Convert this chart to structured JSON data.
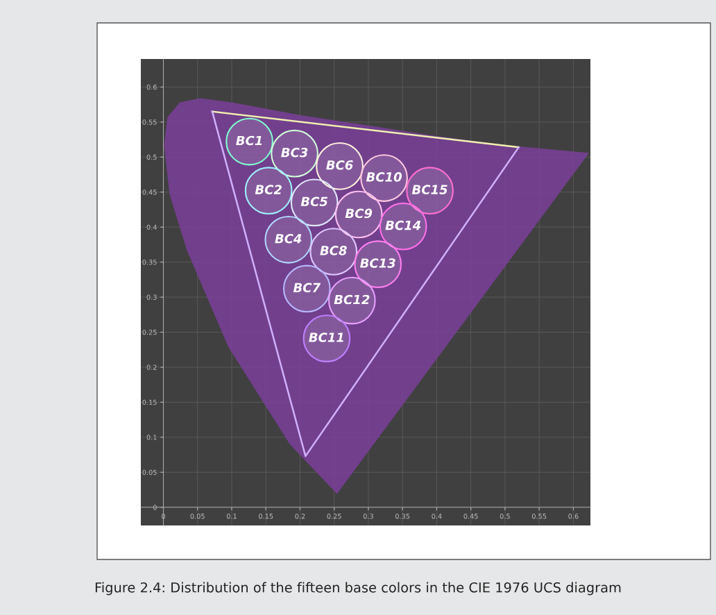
{
  "chart_data": {
    "type": "scatter",
    "annotations": [
      {
        "text": "BC1",
        "x": 0.126,
        "y": 0.522
      },
      {
        "text": "BC3",
        "x": 0.192,
        "y": 0.505
      },
      {
        "text": "BC6",
        "x": 0.258,
        "y": 0.487
      },
      {
        "text": "BC10",
        "x": 0.323,
        "y": 0.47
      },
      {
        "text": "BC15",
        "x": 0.39,
        "y": 0.452
      },
      {
        "text": "BC2",
        "x": 0.154,
        "y": 0.452
      },
      {
        "text": "BC5",
        "x": 0.221,
        "y": 0.435
      },
      {
        "text": "BC9",
        "x": 0.286,
        "y": 0.418
      },
      {
        "text": "BC14",
        "x": 0.351,
        "y": 0.401
      },
      {
        "text": "BC4",
        "x": 0.183,
        "y": 0.382
      },
      {
        "text": "BC8",
        "x": 0.249,
        "y": 0.365
      },
      {
        "text": "BC13",
        "x": 0.314,
        "y": 0.347
      },
      {
        "text": "BC7",
        "x": 0.21,
        "y": 0.312
      },
      {
        "text": "BC12",
        "x": 0.276,
        "y": 0.295
      },
      {
        "text": "BC11",
        "x": 0.239,
        "y": 0.241
      },
      "Figure 2.4: Distribution of the fifteen base colors in the CIE 1976 UCS diagram"
    ],
    "series": [
      {
        "type": "area",
        "color": "#7a3f9a",
        "x": [
          0.254,
          0.185,
          0.095,
          0.034,
          0.009,
          0.001,
          0.006,
          0.024,
          0.054,
          0.1,
          0.2,
          0.3,
          0.4,
          0.5,
          0.623,
          0.254
        ],
        "values": [
          0.019,
          0.09,
          0.229,
          0.368,
          0.447,
          0.517,
          0.557,
          0.578,
          0.584,
          0.578,
          0.56,
          0.545,
          0.53,
          0.517,
          0.506,
          0.019
        ]
      },
      {
        "type": "line",
        "color": "#f0f0b0",
        "x": [
          0.0715,
          0.52
        ],
        "values": [
          0.565,
          0.514
        ]
      },
      {
        "type": "line",
        "color": "#d0b0ff",
        "x": [
          0.0715,
          0.208,
          0.52
        ],
        "values": [
          0.565,
          0.073,
          0.514
        ]
      },
      {
        "marker": "circle",
        "x": [
          0.126,
          0.192,
          0.258,
          0.323,
          0.39,
          0.154,
          0.221,
          0.286,
          0.351,
          0.183,
          0.249,
          0.314,
          0.21,
          0.276,
          0.239
        ],
        "values": [
          0.522,
          0.505,
          0.487,
          0.47,
          0.452,
          0.452,
          0.435,
          0.418,
          0.401,
          0.382,
          0.365,
          0.347,
          0.312,
          0.295,
          0.241
        ],
        "colors": [
          "#80ffd0",
          "#d0ffd8",
          "#fff0e0",
          "#ffc8e0",
          "#ff70d0",
          "#a0f0ff",
          "#e0e8ff",
          "#ffc0f0",
          "#ff70e8",
          "#b0d8ff",
          "#e0c8ff",
          "#ff80f0",
          "#b8b8ff",
          "#e8a0ff",
          "#c080ff"
        ]
      }
    ],
    "xlim": [
      -0.033,
      0.625
    ],
    "ylim": [
      -0.026,
      0.64
    ],
    "xticks": [
      0,
      0.05,
      0.1,
      0.15,
      0.2,
      0.25,
      0.3,
      0.35,
      0.4,
      0.45,
      0.5,
      0.55,
      0.6
    ],
    "yticks": [
      0,
      0.05,
      0.1,
      0.15,
      0.2,
      0.25,
      0.3,
      0.35,
      0.4,
      0.45,
      0.5,
      0.55,
      0.6
    ],
    "grid": true
  }
}
